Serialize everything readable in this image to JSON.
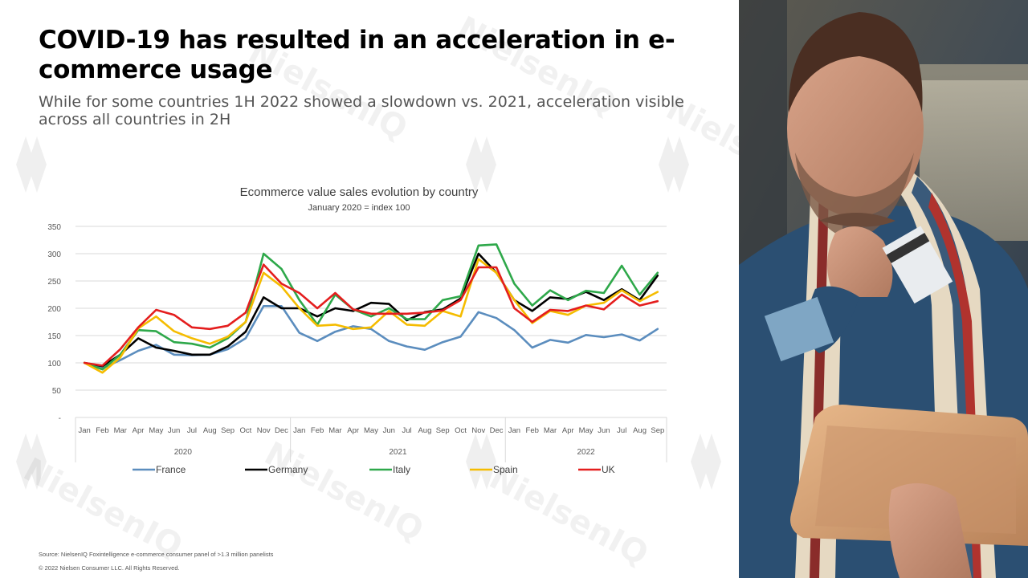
{
  "slide": {
    "title": "COVID-19 has resulted in an acceleration in e-commerce usage",
    "subtitle": "While for some countries 1H 2022 showed a slowdown vs. 2021, acceleration visible across all countries in 2H",
    "watermark_text": "NielsenIQ",
    "footer": {
      "source": "Source: NielsenIQ Foxintelligence e-commerce consumer panel of >1.3 million panelists",
      "copyright": "© 2022 Nielsen Consumer LLC. All Rights Reserved."
    }
  },
  "chart_data": {
    "type": "line",
    "title": "Ecommerce value sales evolution by country",
    "subtitle": "January 2020 = index 100",
    "xlabel": "",
    "ylabel": "",
    "ylim": [
      0,
      350
    ],
    "y_ticks": [
      "350",
      "300",
      "250",
      "200",
      "150",
      "100",
      "50",
      "-"
    ],
    "grid": "horizontal",
    "legend_position": "bottom",
    "categories": [
      "Jan",
      "Feb",
      "Mar",
      "Apr",
      "May",
      "Jun",
      "Jul",
      "Aug",
      "Sep",
      "Oct",
      "Nov",
      "Dec",
      "Jan",
      "Feb",
      "Mar",
      "Apr",
      "May",
      "Jun",
      "Jul",
      "Aug",
      "Sep",
      "Oct",
      "Nov",
      "Dec",
      "Jan",
      "Feb",
      "Mar",
      "Apr",
      "May",
      "Jun",
      "Jul",
      "Aug",
      "Sep"
    ],
    "groups": [
      {
        "label": "2020",
        "count": 12
      },
      {
        "label": "2021",
        "count": 12
      },
      {
        "label": "2022",
        "count": 9
      }
    ],
    "series": [
      {
        "name": "France",
        "color": "#5B8DBE",
        "values": [
          100,
          90,
          105,
          122,
          133,
          115,
          114,
          115,
          125,
          145,
          204,
          204,
          155,
          140,
          157,
          167,
          162,
          140,
          130,
          124,
          138,
          148,
          193,
          182,
          160,
          128,
          142,
          137,
          151,
          147,
          152,
          141,
          162
        ]
      },
      {
        "name": "Germany",
        "color": "#000000",
        "values": [
          100,
          94,
          115,
          145,
          128,
          122,
          115,
          115,
          130,
          157,
          220,
          200,
          200,
          185,
          200,
          195,
          210,
          208,
          178,
          193,
          198,
          218,
          300,
          265,
          215,
          195,
          220,
          217,
          230,
          215,
          235,
          215,
          260
        ]
      },
      {
        "name": "Italy",
        "color": "#2EA84A",
        "values": [
          100,
          88,
          115,
          160,
          158,
          138,
          135,
          128,
          145,
          175,
          300,
          272,
          215,
          170,
          225,
          198,
          185,
          200,
          180,
          180,
          215,
          222,
          315,
          317,
          245,
          205,
          233,
          215,
          232,
          228,
          278,
          225,
          265
        ]
      },
      {
        "name": "Spain",
        "color": "#F5BC00",
        "values": [
          100,
          82,
          110,
          163,
          185,
          158,
          145,
          135,
          148,
          175,
          265,
          240,
          200,
          168,
          170,
          162,
          165,
          195,
          170,
          168,
          195,
          185,
          290,
          265,
          215,
          173,
          195,
          188,
          205,
          210,
          233,
          213,
          230
        ]
      },
      {
        "name": "UK",
        "color": "#E41E1E",
        "values": [
          100,
          95,
          125,
          165,
          197,
          188,
          165,
          162,
          168,
          192,
          280,
          245,
          228,
          200,
          228,
          198,
          190,
          190,
          190,
          192,
          196,
          215,
          275,
          275,
          200,
          175,
          197,
          195,
          205,
          198,
          225,
          205,
          213
        ]
      }
    ]
  }
}
